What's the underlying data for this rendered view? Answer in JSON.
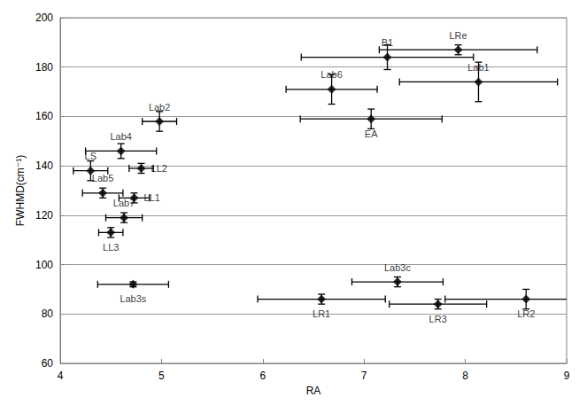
{
  "chart_data": {
    "type": "scatter",
    "x_label": "RA",
    "y_label": "FWHMD(cm⁻¹)",
    "xlim": [
      4,
      9
    ],
    "xticks": [
      4,
      5,
      6,
      7,
      8,
      9
    ],
    "ylim": [
      60,
      200
    ],
    "yticks": [
      60,
      80,
      100,
      120,
      140,
      160,
      180,
      200
    ],
    "grid": true,
    "color": "#000000",
    "marker": "diamond",
    "labels": [
      "B1",
      "LRe",
      "Lab1",
      "Lab6",
      "EA",
      "Lab2",
      "Lab4",
      "LS",
      "LL2",
      "Lab5",
      "LL1",
      "Lab7",
      "LL3",
      "Lab3s",
      "Lab3c",
      "LR1",
      "LR3",
      "LR2"
    ],
    "x": [
      7.23,
      7.93,
      8.13,
      6.68,
      7.07,
      4.98,
      4.6,
      4.3,
      4.8,
      4.42,
      4.73,
      4.63,
      4.5,
      4.72,
      7.33,
      6.58,
      7.73,
      8.6
    ],
    "values": [
      184,
      187,
      174,
      171,
      159,
      158,
      146,
      138,
      139,
      129,
      127,
      119,
      113,
      92,
      93,
      86,
      84,
      86
    ],
    "x_error": [
      0.85,
      0.78,
      0.78,
      0.45,
      0.7,
      0.17,
      0.35,
      0.17,
      0.12,
      0.2,
      0.15,
      0.18,
      0.12,
      0.35,
      0.45,
      0.63,
      0.48,
      0.8
    ],
    "y_error": [
      5,
      2,
      8,
      6,
      4,
      4,
      3,
      4,
      2,
      2,
      2,
      2,
      2,
      1,
      2,
      2,
      2,
      4
    ]
  }
}
